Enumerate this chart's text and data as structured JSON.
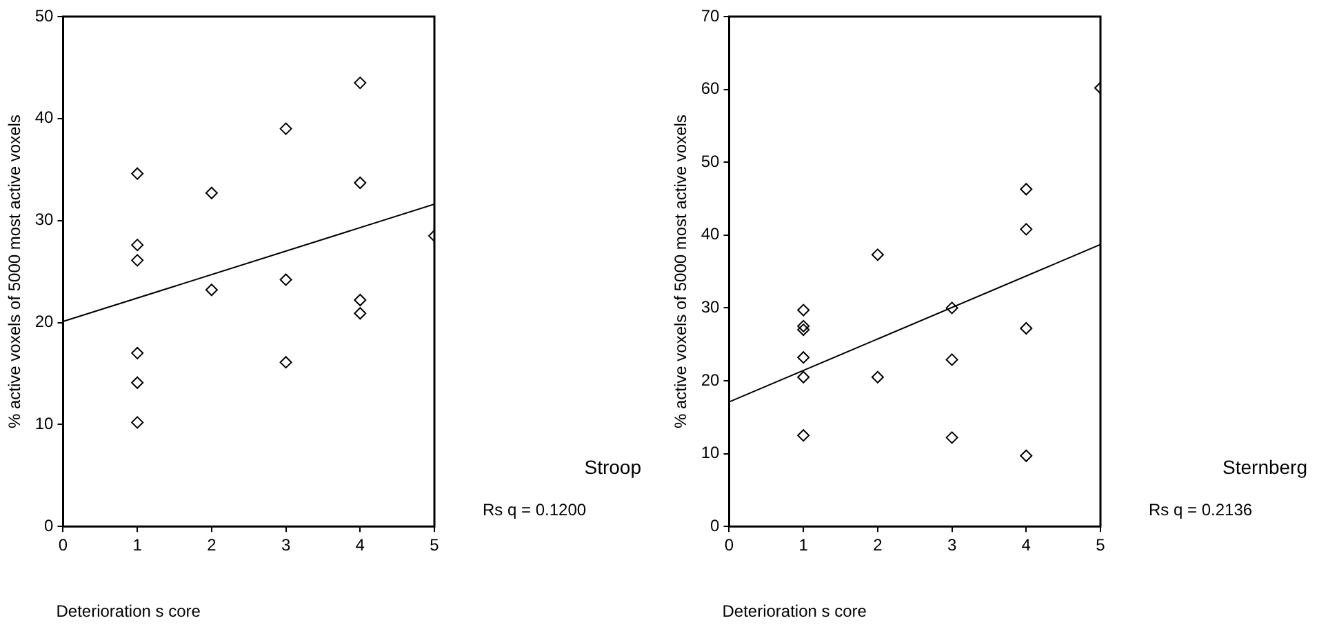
{
  "chart_data": [
    {
      "type": "scatter",
      "xlabel": "Deterioration s core",
      "ylabel": "% active voxels of 5000 most active voxels",
      "annotations": [
        "Stroop",
        "Rs q = 0.1200"
      ],
      "xlim": [
        0,
        5
      ],
      "xticks": [
        0,
        1,
        2,
        3,
        4,
        5
      ],
      "ylim": [
        0,
        50
      ],
      "yticks": [
        0,
        10,
        20,
        30,
        40,
        50
      ],
      "grid": false,
      "legend": false,
      "marker": "diamond",
      "series": [
        {
          "color": "#000000",
          "x": [
            1,
            1,
            1,
            1,
            1,
            1,
            2,
            2,
            3,
            3,
            3,
            4,
            4,
            4,
            4,
            5
          ],
          "values": [
            34.6,
            27.6,
            26.1,
            17,
            14.1,
            10.2,
            32.7,
            23.2,
            39,
            24.2,
            16.1,
            43.5,
            33.7,
            22.2,
            20.9,
            28.5
          ]
        },
        {
          "type": "line",
          "color": "#000000",
          "marker": "none",
          "x": [
            0,
            5
          ],
          "values": [
            20.1,
            31.6
          ]
        }
      ]
    },
    {
      "type": "scatter",
      "xlabel": "Deterioration s core",
      "ylabel": "% active voxels of 5000 most active voxels",
      "annotations": [
        "Sternberg",
        "Rs q = 0.2136"
      ],
      "xlim": [
        0,
        5
      ],
      "xticks": [
        0,
        1,
        2,
        3,
        4,
        5
      ],
      "ylim": [
        0,
        70
      ],
      "yticks": [
        0,
        10,
        20,
        30,
        40,
        50,
        60,
        70
      ],
      "grid": false,
      "legend": false,
      "marker": "diamond",
      "series": [
        {
          "color": "#000000",
          "x": [
            1,
            1,
            1,
            1,
            1,
            1,
            2,
            2,
            3,
            3,
            3,
            4,
            4,
            4,
            4,
            5
          ],
          "values": [
            29.7,
            27.5,
            27,
            23.2,
            20.5,
            12.5,
            37.3,
            20.5,
            30,
            22.9,
            12.2,
            46.3,
            40.8,
            27.2,
            9.7,
            60.2
          ]
        },
        {
          "type": "line",
          "color": "#000000",
          "marker": "none",
          "x": [
            0,
            5
          ],
          "values": [
            17.1,
            38.7
          ]
        }
      ]
    }
  ]
}
